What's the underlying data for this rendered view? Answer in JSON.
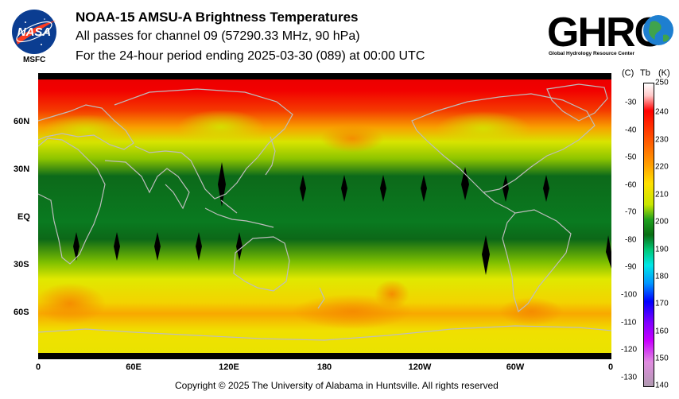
{
  "header": {
    "title": "NOAA-15 AMSU-A Brightness Temperatures",
    "subtitle": "All passes for channel 09 (57290.33 MHz, 90 hPa)",
    "period": "For the 24-hour period ending 2025-03-30 (089) at 00:00 UTC"
  },
  "logos": {
    "nasa_text": "NASA",
    "nasa_label": "MSFC",
    "ghrc_text": "GHRC",
    "ghrc_subtitle": "Global Hydrology Resource Center"
  },
  "map": {
    "lat_labels": [
      "60N",
      "30N",
      "EQ",
      "30S",
      "60S"
    ],
    "lon_labels": [
      "0",
      "60E",
      "120E",
      "180",
      "120W",
      "60W",
      "0"
    ],
    "colors": {
      "polar_north": "#f20000",
      "warm_band": "#f8a000",
      "mid": "#d8e400",
      "tropics": "#0c6a1a",
      "swath_gap": "#000000"
    }
  },
  "colorbar": {
    "header_c": "(C)",
    "header_tb": "Tb",
    "header_k": "(K)",
    "kelvin_labels": [
      "250",
      "240",
      "230",
      "220",
      "210",
      "200",
      "190",
      "180",
      "170",
      "160",
      "150",
      "140"
    ],
    "celsius_labels": [
      "-30",
      "-40",
      "-50",
      "-60",
      "-70",
      "-80",
      "-90",
      "-100",
      "-110",
      "-120",
      "-130"
    ]
  },
  "footer": {
    "copyright": "Copyright © 2025 The University of Alabama in Huntsville.  All rights reserved"
  }
}
